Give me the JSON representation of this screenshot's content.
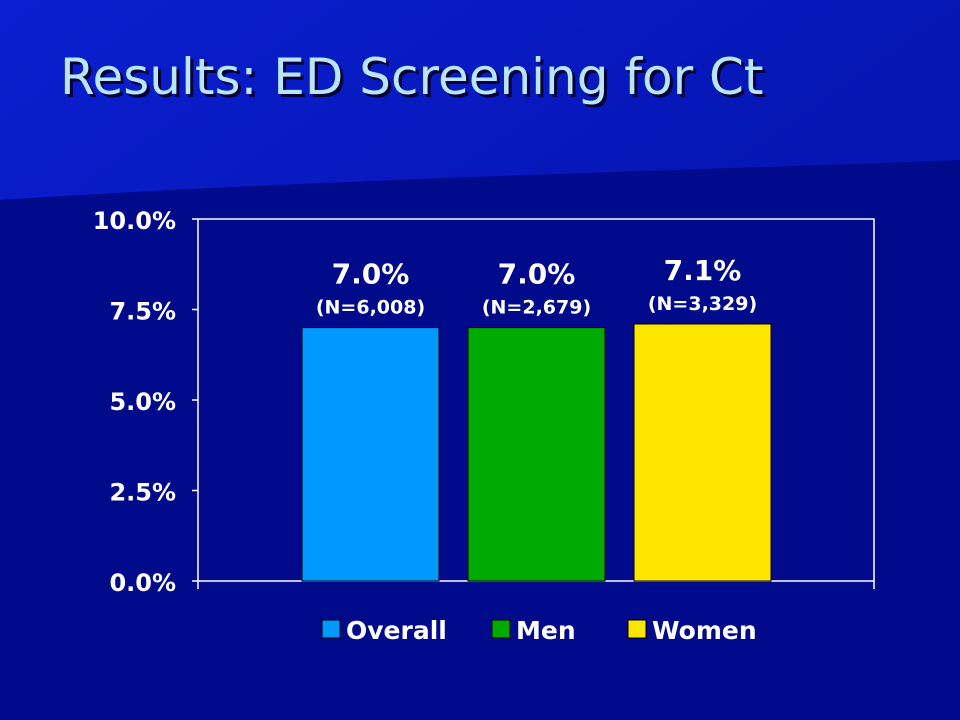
{
  "slide": {
    "title": "Results: ED Screening for Ct"
  },
  "colors": {
    "background": "#000a8a",
    "title": "#b8e6ff",
    "axis": "#ffffff",
    "text": "#ffffff"
  },
  "chart_data": {
    "type": "bar",
    "title": "",
    "xlabel": "",
    "ylabel": "",
    "ylim": [
      0,
      10
    ],
    "yticks": [
      {
        "value": 0,
        "label": "0.0%"
      },
      {
        "value": 2.5,
        "label": "2.5%"
      },
      {
        "value": 5,
        "label": "5.0%"
      },
      {
        "value": 7.5,
        "label": "7.5%"
      },
      {
        "value": 10,
        "label": "10.0%"
      }
    ],
    "grid": false,
    "legend_position": "bottom",
    "series": [
      {
        "name": "Overall",
        "value": 7.0,
        "value_label": "7.0%",
        "n_label": "(N=6,008)",
        "color": "#0099ff"
      },
      {
        "name": "Men",
        "value": 7.0,
        "value_label": "7.0%",
        "n_label": "(N=2,679)",
        "color": "#00aa00"
      },
      {
        "name": "Women",
        "value": 7.1,
        "value_label": "7.1%",
        "n_label": "(N=3,329)",
        "color": "#ffe600"
      }
    ]
  }
}
